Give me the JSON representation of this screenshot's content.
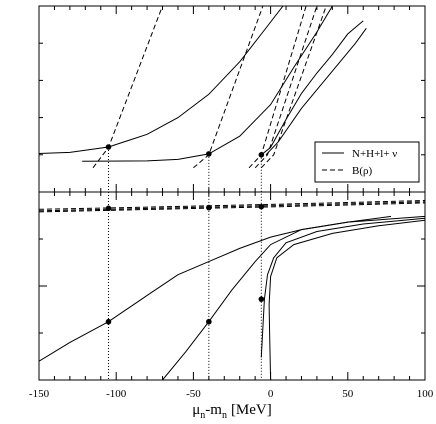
{
  "chart_data": {
    "type": "line",
    "xlabel": "μ_n-m_n [MeV]",
    "xlabel_parts": {
      "mu": "μ",
      "sub1": "n",
      "mid": "-m",
      "sub2": "n",
      "unit": "[MeV]"
    },
    "xlim": [
      -150,
      100
    ],
    "xticks": [
      -150,
      -100,
      -50,
      0,
      50,
      100
    ],
    "xtick_labels": [
      "-150",
      "-100",
      "-50",
      "0",
      "50",
      "100"
    ],
    "legend": {
      "placement": "inside right, lower part of top panel",
      "entries": [
        {
          "label": "N+H+l+ ν",
          "style": "solid"
        },
        {
          "label": "B(ρ)",
          "style": "dashed"
        }
      ]
    },
    "markers_x": [
      -105,
      -40,
      -6
    ],
    "top_panel": {
      "ylim": [
        0,
        1
      ],
      "series": [
        {
          "style": "solid",
          "points": [
            [
              -150,
              0.207
            ],
            [
              -130,
              0.213
            ],
            [
              -105,
              0.242
            ],
            [
              -80,
              0.31
            ],
            [
              -60,
              0.4
            ],
            [
              -40,
              0.525
            ],
            [
              -20,
              0.7
            ],
            [
              -5,
              0.86
            ],
            [
              8,
              1.0
            ]
          ]
        },
        {
          "style": "solid",
          "points": [
            [
              -122,
              0.165
            ],
            [
              -80,
              0.167
            ],
            [
              -60,
              0.175
            ],
            [
              -40,
              0.205
            ],
            [
              -20,
              0.3
            ],
            [
              0,
              0.47
            ],
            [
              15,
              0.67
            ],
            [
              30,
              0.86
            ],
            [
              40,
              1.0
            ]
          ]
        },
        {
          "style": "solid",
          "points": [
            [
              -6,
              0.2
            ],
            [
              0,
              0.24
            ],
            [
              10,
              0.39
            ],
            [
              20,
              0.53
            ],
            [
              30,
              0.64
            ],
            [
              40,
              0.74
            ],
            [
              50,
              0.85
            ],
            [
              60,
              0.92
            ]
          ]
        },
        {
          "style": "solid",
          "points": [
            [
              -3,
              0.2
            ],
            [
              5,
              0.27
            ],
            [
              20,
              0.45
            ],
            [
              40,
              0.65
            ],
            [
              55,
              0.8
            ],
            [
              62,
              0.88
            ]
          ]
        },
        {
          "style": "dashed",
          "points": [
            [
              -115,
              0.13
            ],
            [
              -105,
              0.24
            ],
            [
              -70,
              1.0
            ]
          ]
        },
        {
          "style": "dashed",
          "points": [
            [
              -50,
              0.13
            ],
            [
              -40,
              0.2
            ],
            [
              -5,
              1.0
            ]
          ]
        },
        {
          "style": "dashed",
          "points": [
            [
              -14,
              0.13
            ],
            [
              -6,
              0.2
            ],
            [
              23,
              1.0
            ]
          ]
        },
        {
          "style": "dashed",
          "points": [
            [
              -10,
              0.13
            ],
            [
              -2,
              0.2
            ],
            [
              30,
              1.0
            ]
          ]
        },
        {
          "style": "dashed",
          "points": [
            [
              -6,
              0.13
            ],
            [
              2,
              0.2
            ],
            [
              36,
              1.0
            ]
          ]
        }
      ],
      "points": [
        [
          -105,
          0.242
        ],
        [
          -40,
          0.205
        ],
        [
          -6,
          0.2
        ]
      ]
    },
    "bottom_panel": {
      "ylim": [
        0,
        1
      ],
      "yticks": [
        0.5
      ],
      "series": [
        {
          "style": "solid",
          "points": [
            [
              -150,
              0.1
            ],
            [
              -130,
              0.2
            ],
            [
              -105,
              0.31
            ],
            [
              -80,
              0.45
            ],
            [
              -60,
              0.56
            ],
            [
              -40,
              0.63
            ],
            [
              -20,
              0.7
            ],
            [
              0,
              0.76
            ],
            [
              20,
              0.8
            ],
            [
              50,
              0.84
            ],
            [
              78,
              0.87
            ]
          ]
        },
        {
          "style": "solid",
          "points": [
            [
              -70,
              0.0
            ],
            [
              -55,
              0.15
            ],
            [
              -40,
              0.31
            ],
            [
              -25,
              0.48
            ],
            [
              -10,
              0.63
            ],
            [
              0,
              0.72
            ],
            [
              20,
              0.8
            ],
            [
              50,
              0.84
            ],
            [
              100,
              0.87
            ]
          ]
        },
        {
          "style": "solid",
          "points": [
            [
              -6,
              0.12
            ],
            [
              -5,
              0.28
            ],
            [
              -4,
              0.43
            ],
            [
              -2,
              0.56
            ],
            [
              2,
              0.65
            ],
            [
              10,
              0.73
            ],
            [
              30,
              0.79
            ],
            [
              60,
              0.83
            ],
            [
              100,
              0.86
            ]
          ]
        },
        {
          "style": "solid",
          "points": [
            [
              0,
              0.0
            ],
            [
              -0.5,
              0.2
            ],
            [
              -1,
              0.4
            ],
            [
              0,
              0.55
            ],
            [
              4,
              0.65
            ],
            [
              15,
              0.72
            ],
            [
              40,
              0.78
            ],
            [
              70,
              0.82
            ],
            [
              100,
              0.85
            ]
          ]
        },
        {
          "style": "dashed",
          "points": [
            [
              -150,
              0.908
            ],
            [
              -100,
              0.916
            ],
            [
              -50,
              0.925
            ],
            [
              0,
              0.934
            ],
            [
              50,
              0.944
            ],
            [
              100,
              0.955
            ]
          ]
        },
        {
          "style": "dashed",
          "points": [
            [
              -150,
              0.9
            ],
            [
              -100,
              0.909
            ],
            [
              -50,
              0.918
            ],
            [
              0,
              0.927
            ],
            [
              50,
              0.937
            ],
            [
              100,
              0.948
            ]
          ]
        },
        {
          "style": "dashed",
          "points": [
            [
              -150,
              0.894
            ],
            [
              -100,
              0.903
            ],
            [
              -50,
              0.912
            ],
            [
              0,
              0.921
            ],
            [
              50,
              0.931
            ],
            [
              100,
              0.942
            ]
          ]
        }
      ],
      "points": [
        [
          -105,
          0.31
        ],
        [
          -40,
          0.31
        ],
        [
          -6,
          0.43
        ],
        [
          -105,
          0.913
        ],
        [
          -40,
          0.917
        ],
        [
          -6,
          0.922
        ]
      ]
    },
    "grid": false,
    "colors": {
      "line": "#000000",
      "background": "#ffffff"
    }
  }
}
